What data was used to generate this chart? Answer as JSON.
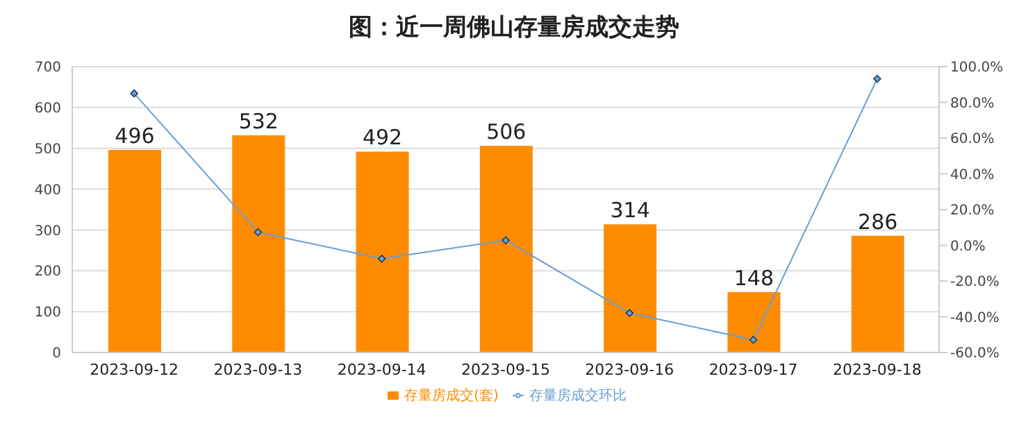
{
  "chart_data": {
    "type": "bar",
    "title": "图：近一周佛山存量房成交走势",
    "categories": [
      "2023-09-12",
      "2023-09-13",
      "2023-09-14",
      "2023-09-15",
      "2023-09-16",
      "2023-09-17",
      "2023-09-18"
    ],
    "series": [
      {
        "name": "存量房成交(套)",
        "color": "#ff8c00",
        "values": [
          496,
          532,
          492,
          506,
          314,
          148,
          286
        ],
        "value_labels": [
          "496",
          "532",
          "492",
          "506",
          "314",
          "148",
          "286"
        ]
      },
      {
        "name": "存量房成交环比",
        "type": "line",
        "axis": "y2",
        "color": "#6a9fd4",
        "values": [
          85,
          7.3,
          -7.5,
          2.8,
          -37.9,
          -52.9,
          93.2
        ]
      }
    ],
    "ylim": [
      0,
      700
    ],
    "yticks": [
      0,
      100,
      200,
      300,
      400,
      500,
      600,
      700
    ],
    "y2lim": [
      -60,
      100
    ],
    "y2ticks": [
      {
        "value": -60,
        "label": "-60.0%"
      },
      {
        "value": -40,
        "label": "-40.0%"
      },
      {
        "value": -20,
        "label": "-20.0%"
      },
      {
        "value": 0,
        "label": "0.0%"
      },
      {
        "value": 20,
        "label": "20.0%"
      },
      {
        "value": 40,
        "label": "40.0%"
      },
      {
        "value": 60,
        "label": "60.0%"
      },
      {
        "value": 80,
        "label": "80.0%"
      },
      {
        "value": 100,
        "label": "100.0%"
      }
    ],
    "grid": "y",
    "legend": "bottom",
    "marker": "diamond",
    "line_style": "solid"
  }
}
